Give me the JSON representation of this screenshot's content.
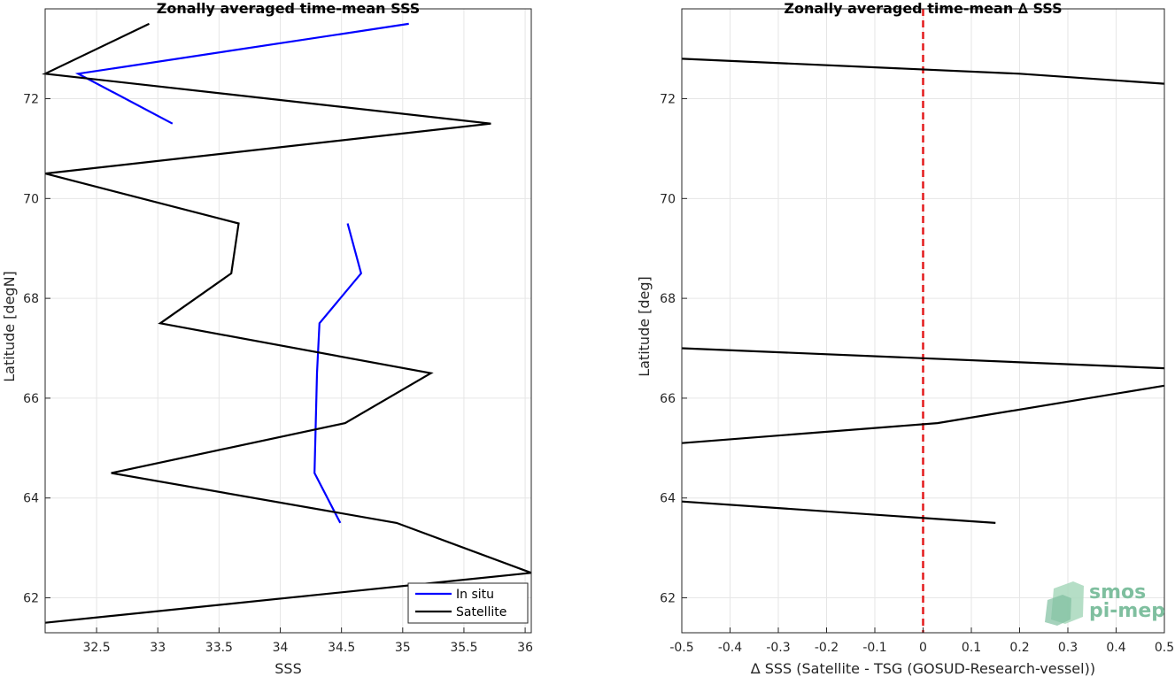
{
  "chart_data": [
    {
      "type": "line",
      "title": "Zonally averaged time-mean SSS",
      "xlabel": "SSS",
      "ylabel": "Latitude [degN]",
      "xlim": [
        32.08,
        36.05
      ],
      "ylim": [
        61.3,
        73.8
      ],
      "xticks": [
        32.5,
        33,
        33.5,
        34,
        34.5,
        35,
        35.5,
        36
      ],
      "xticklabels": [
        "32.5",
        "33",
        "33.5",
        "34",
        "34.5",
        "35",
        "35.5",
        "36"
      ],
      "yticks": [
        62,
        64,
        66,
        68,
        70,
        72
      ],
      "yticklabels": [
        "62",
        "64",
        "66",
        "68",
        "70",
        "72"
      ],
      "grid": true,
      "legend_position": "bottom-right",
      "series": [
        {
          "name": "In situ",
          "color": "#0000ff",
          "segments": [
            [
              [
                35.05,
                73.5
              ],
              [
                32.35,
                72.5
              ],
              [
                33.12,
                71.5
              ]
            ],
            [
              [
                34.55,
                69.5
              ],
              [
                34.66,
                68.5
              ],
              [
                34.32,
                67.5
              ],
              [
                34.3,
                66.5
              ],
              [
                34.29,
                65.5
              ],
              [
                34.28,
                64.5
              ],
              [
                34.49,
                63.5
              ]
            ]
          ]
        },
        {
          "name": "Satellite",
          "color": "#000000",
          "segments": [
            [
              [
                32.93,
                73.5
              ],
              [
                32.08,
                72.5
              ],
              [
                35.72,
                71.5
              ],
              [
                32.08,
                70.5
              ],
              [
                33.66,
                69.5
              ],
              [
                33.6,
                68.5
              ],
              [
                33.02,
                67.5
              ],
              [
                35.23,
                66.5
              ],
              [
                34.53,
                65.5
              ],
              [
                32.62,
                64.5
              ],
              [
                34.95,
                63.5
              ],
              [
                36.05,
                62.5
              ],
              [
                32.08,
                61.5
              ]
            ]
          ]
        }
      ]
    },
    {
      "type": "line",
      "title": "Zonally averaged time-mean ∆ SSS",
      "xlabel": "∆ SSS (Satellite - TSG (GOSUD-Research-vessel))",
      "ylabel": "Latitude [deg]",
      "xlim": [
        -0.5,
        0.5
      ],
      "ylim": [
        61.3,
        73.8
      ],
      "xticks": [
        -0.5,
        -0.4,
        -0.3,
        -0.2,
        -0.1,
        0,
        0.1,
        0.2,
        0.3,
        0.4,
        0.5
      ],
      "xticklabels": [
        "-0.5",
        "-0.4",
        "-0.3",
        "-0.2",
        "-0.1",
        "0",
        "0.1",
        "0.2",
        "0.3",
        "0.4",
        "0.5"
      ],
      "yticks": [
        62,
        64,
        66,
        68,
        70,
        72
      ],
      "yticklabels": [
        "62",
        "64",
        "66",
        "68",
        "70",
        "72"
      ],
      "grid": true,
      "reference_line": {
        "x": 0,
        "color": "#e31a1c",
        "style": "dashed"
      },
      "series": [
        {
          "color": "#000000",
          "segments": [
            [
              [
                -0.5,
                72.8
              ],
              [
                0.2,
                72.5
              ],
              [
                0.5,
                72.3
              ]
            ],
            [
              [
                -0.5,
                67.0
              ],
              [
                0.0,
                66.8
              ],
              [
                0.5,
                66.6
              ]
            ],
            [
              [
                -0.5,
                65.1
              ],
              [
                0.03,
                65.5
              ],
              [
                0.5,
                66.25
              ]
            ],
            [
              [
                -0.5,
                63.93
              ],
              [
                0.15,
                63.5
              ]
            ]
          ]
        }
      ]
    }
  ],
  "logo": {
    "line1": "smos",
    "line2": "pi-mep"
  }
}
